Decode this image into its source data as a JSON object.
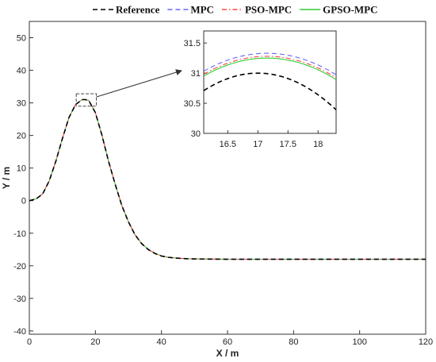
{
  "chart_data": {
    "type": "line",
    "xlabel": "X / m",
    "ylabel": "Y / m",
    "xlim": [
      0,
      120
    ],
    "ylim": [
      -41,
      55
    ],
    "xticks": [
      0,
      20,
      40,
      60,
      80,
      100,
      120
    ],
    "yticks": [
      -40,
      -30,
      -20,
      -10,
      0,
      10,
      20,
      30,
      40,
      50
    ],
    "grid": false,
    "legend_position": "top",
    "series": [
      {
        "name": "Reference",
        "color": "#000000",
        "dash": "dashed",
        "offset": 0.0
      },
      {
        "name": "MPC",
        "color": "#6666ff",
        "dash": "dashed",
        "offset": 0.33
      },
      {
        "name": "PSO-MPC",
        "color": "#ff4444",
        "dash": "dashdot",
        "offset": 0.28
      },
      {
        "name": "GPSO-MPC",
        "color": "#33cc33",
        "dash": "solid",
        "offset": 0.25
      }
    ],
    "trajectory": {
      "x": [
        0,
        2,
        4,
        6,
        8,
        10,
        12,
        14,
        16,
        17,
        18,
        20,
        22,
        24,
        26,
        28,
        30,
        32,
        34,
        36,
        38,
        40,
        42,
        44,
        46,
        48,
        50,
        55,
        60,
        70,
        80,
        90,
        100,
        110,
        120
      ],
      "y": [
        0,
        0.5,
        2,
        6,
        12,
        19,
        25.5,
        29.5,
        31,
        31.0,
        30.7,
        27,
        20,
        12,
        5,
        -1.5,
        -6.5,
        -10.5,
        -13.2,
        -15,
        -16.2,
        -17,
        -17.4,
        -17.6,
        -17.75,
        -17.85,
        -17.9,
        -17.95,
        -18,
        -18,
        -18,
        -18,
        -18,
        -18,
        -18
      ]
    },
    "inset": {
      "xlim": [
        16.1,
        18.3
      ],
      "ylim": [
        30,
        31.7
      ],
      "xticks": [
        16.5,
        17,
        17.5,
        18
      ],
      "yticks": [
        30,
        30.5,
        31,
        31.5
      ],
      "zoom_box": {
        "x": [
          14.2,
          20.3
        ],
        "y": [
          29.0,
          32.8
        ]
      }
    }
  }
}
